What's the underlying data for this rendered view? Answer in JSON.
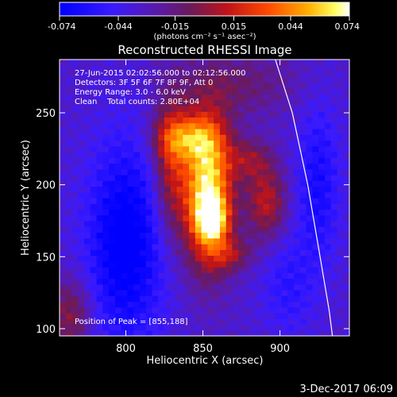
{
  "chart_data": {
    "type": "heatmap",
    "title": "Reconstructed RHESSI Image",
    "xlabel": "Heliocentric X (arcsec)",
    "ylabel": "Heliocentric Y (arcsec)",
    "xlim": [
      757,
      945
    ],
    "ylim": [
      95,
      287
    ],
    "x_ticks": [
      800,
      850,
      900
    ],
    "y_ticks": [
      100,
      150,
      200,
      250
    ],
    "colorbar": {
      "range": [
        -0.074,
        0.074
      ],
      "tick_values": [
        -0.074,
        -0.044,
        -0.015,
        0.015,
        0.044,
        0.074
      ],
      "tick_labels": [
        "-0.074",
        "-0.044",
        "-0.015",
        "0.015",
        "0.044",
        "0.074"
      ],
      "units_label": "(photons cm⁻² s⁻¹ asec⁻²)",
      "colormap": "blue-purple-red-yellow-white"
    },
    "annotations": {
      "time_range": "27-Jun-2015 02:02:56.000 to 02:12:56.000",
      "detectors": "Detectors: 3F 5F 6F 7F 8F 9F, Att 0",
      "energy": "Energy Range: 3.0 - 6.0 keV",
      "clean": "Clean    Total counts: 2.80E+04",
      "peak": "Position of Peak = [855,188]"
    },
    "peak": [
      855,
      188
    ],
    "sources": [
      {
        "x": 853,
        "y": 196,
        "sx": 11,
        "sy": 35,
        "amp": 0.105
      },
      {
        "x": 856,
        "y": 176,
        "sx": 7,
        "sy": 10,
        "amp": 0.06
      },
      {
        "x": 829,
        "y": 214,
        "sx": 8,
        "sy": 34,
        "amp": 0.045
      },
      {
        "x": 840,
        "y": 233,
        "sx": 14,
        "sy": 11,
        "amp": 0.05
      },
      {
        "x": 891,
        "y": 188,
        "sx": 9,
        "sy": 18,
        "amp": 0.045
      },
      {
        "x": 880,
        "y": 218,
        "sx": 10,
        "sy": 10,
        "amp": 0.03
      },
      {
        "x": 868,
        "y": 152,
        "sx": 10,
        "sy": 8,
        "amp": 0.03
      },
      {
        "x": 872,
        "y": 270,
        "sx": 28,
        "sy": 16,
        "amp": 0.022
      },
      {
        "x": 764,
        "y": 110,
        "sx": 10,
        "sy": 18,
        "amp": 0.035
      },
      {
        "x": 800,
        "y": 160,
        "sx": 18,
        "sy": 50,
        "amp": -0.048
      },
      {
        "x": 905,
        "y": 130,
        "sx": 12,
        "sy": 25,
        "amp": -0.02
      },
      {
        "x": 925,
        "y": 200,
        "sx": 10,
        "sy": 40,
        "amp": -0.03
      }
    ],
    "limb_curve": [
      [
        897,
        287
      ],
      [
        908,
        250
      ],
      [
        918,
        200
      ],
      [
        926,
        150
      ],
      [
        932,
        112
      ],
      [
        934,
        95
      ]
    ]
  },
  "footer_date": "3-Dec-2017 06:09"
}
